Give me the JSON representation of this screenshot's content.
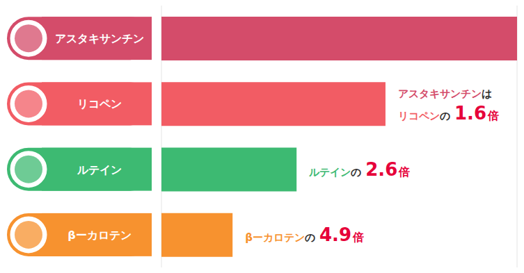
{
  "chart_data": {
    "type": "bar",
    "orientation": "horizontal",
    "categories": [
      "アスタキサンチン",
      "リコペン",
      "ルテイン",
      "βーカロテン"
    ],
    "values": [
      10,
      6.3,
      3.8,
      2.0
    ],
    "colors": [
      "#d44c6a",
      "#f25c64",
      "#3dba72",
      "#f7922f"
    ],
    "xlim": [
      0,
      10
    ],
    "xticks": [
      0,
      1,
      2,
      3,
      4,
      5,
      6,
      7,
      8,
      9,
      10
    ],
    "grid": true,
    "tick_labels": false,
    "annotations": [
      {
        "category": "リコペン",
        "subject": "アスタキサンチン",
        "subject_particle": "は",
        "object": "リコペン",
        "particle": "の",
        "ratio": 1.6,
        "unit": "倍"
      },
      {
        "category": "ルテイン",
        "object": "ルテイン",
        "particle": "の",
        "ratio": 2.6,
        "unit": "倍"
      },
      {
        "category": "βーカロテン",
        "object": "βーカロテン",
        "particle": "の",
        "ratio": 4.9,
        "unit": "倍"
      }
    ]
  }
}
